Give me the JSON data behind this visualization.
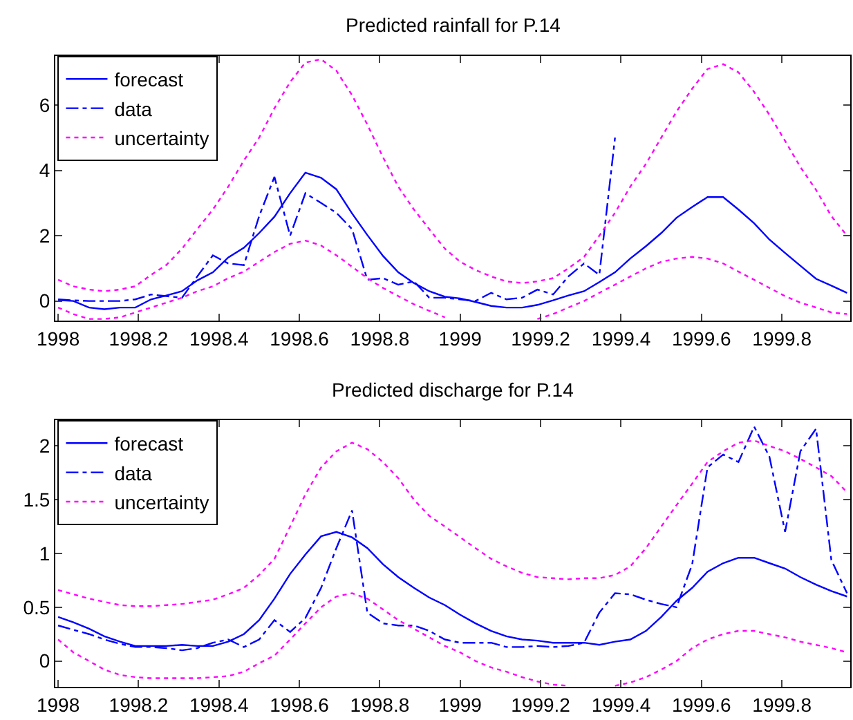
{
  "chart_data": [
    {
      "type": "line",
      "title": "Predicted rainfall for P.14",
      "legend": "top left",
      "x": [
        1998,
        1998.038,
        1998.077,
        1998.115,
        1998.154,
        1998.192,
        1998.231,
        1998.269,
        1998.308,
        1998.346,
        1998.385,
        1998.423,
        1998.462,
        1998.5,
        1998.538,
        1998.577,
        1998.615,
        1998.654,
        1998.692,
        1998.731,
        1998.769,
        1998.808,
        1998.846,
        1998.885,
        1998.923,
        1998.962,
        1999,
        1999.038,
        1999.077,
        1999.115,
        1999.154,
        1999.192,
        1999.231,
        1999.269,
        1999.308,
        1999.346,
        1999.385,
        1999.423,
        1999.462,
        1999.5,
        1999.538,
        1999.577,
        1999.615,
        1999.654,
        1999.692,
        1999.731,
        1999.769,
        1999.808,
        1999.846,
        1999.885,
        1999.923,
        1999.962
      ],
      "xlim": [
        1997.993,
        1999.97
      ],
      "xticks": [
        1998,
        1998.2,
        1998.4,
        1998.6,
        1998.8,
        1999,
        1999.2,
        1999.4,
        1999.6,
        1999.8
      ],
      "ylim": [
        -0.6,
        7.5
      ],
      "yticks": [
        0,
        2,
        4,
        6
      ],
      "series": [
        {
          "name": "forecast",
          "color": "#0000ff",
          "line_style": "solid",
          "values": [
            0.03,
            0,
            -0.2,
            -0.25,
            -0.2,
            -0.2,
            0.05,
            0.17,
            0.3,
            0.63,
            0.88,
            1.33,
            1.63,
            2.08,
            2.58,
            3.3,
            3.93,
            3.77,
            3.42,
            2.68,
            2.02,
            1.38,
            0.88,
            0.55,
            0.3,
            0.13,
            0.08,
            -0.03,
            -0.15,
            -0.2,
            -0.2,
            -0.12,
            0.02,
            0.17,
            0.3,
            0.58,
            0.88,
            1.3,
            1.68,
            2.08,
            2.55,
            2.88,
            3.18,
            3.18,
            2.8,
            2.38,
            1.88,
            1.47,
            1.08,
            0.68,
            0.47,
            0.25
          ]
        },
        {
          "name": "data",
          "color": "#0000ff",
          "line_style": "dashed",
          "values": [
            0.05,
            0.02,
            0,
            0,
            0,
            0.05,
            0.2,
            0.15,
            0.1,
            0.75,
            1.4,
            1.15,
            1.1,
            2.6,
            3.8,
            2.0,
            3.3,
            3.0,
            2.7,
            2.2,
            0.65,
            0.7,
            0.5,
            0.6,
            0.1,
            0.1,
            0.05,
            0,
            0.25,
            0.05,
            0.1,
            0.35,
            0.2,
            0.75,
            1.15,
            0.8,
            5.0,
            null,
            null,
            null,
            null,
            null,
            null,
            null,
            null,
            null,
            null,
            null,
            null,
            null,
            null,
            null
          ]
        },
        {
          "name": "uncertainty",
          "color": "#ff00ff",
          "line_style": "dotted",
          "values": [
            0.65,
            0.45,
            0.35,
            0.3,
            0.35,
            0.45,
            0.8,
            1.1,
            1.6,
            2.2,
            2.8,
            3.5,
            4.3,
            5.0,
            5.9,
            6.7,
            7.3,
            7.4,
            7.05,
            6.3,
            5.4,
            4.4,
            3.5,
            2.8,
            2.2,
            1.6,
            1.2,
            0.95,
            0.75,
            0.6,
            0.55,
            0.6,
            0.7,
            1.0,
            1.35,
            2.0,
            2.7,
            3.5,
            4.2,
            5.0,
            5.8,
            6.5,
            7.1,
            7.25,
            7.0,
            6.4,
            5.7,
            4.9,
            4.1,
            3.4,
            2.6,
            2.0
          ]
        },
        {
          "color": "#ff00ff",
          "line_style": "dotted",
          "values": [
            -0.2,
            -0.4,
            -0.55,
            -0.55,
            -0.5,
            -0.35,
            -0.2,
            -0.05,
            0.1,
            0.3,
            0.45,
            0.7,
            0.9,
            1.2,
            1.5,
            1.75,
            1.85,
            1.7,
            1.4,
            1.05,
            0.7,
            0.4,
            0.15,
            -0.1,
            -0.3,
            -0.5,
            null,
            null,
            null,
            null,
            null,
            -0.55,
            -0.4,
            -0.2,
            0,
            0.25,
            0.5,
            0.75,
            1.0,
            1.2,
            1.3,
            1.35,
            1.3,
            1.15,
            0.9,
            0.65,
            0.4,
            0.15,
            -0.05,
            -0.2,
            -0.35,
            -0.4
          ]
        }
      ]
    },
    {
      "type": "line",
      "title": "Predicted discharge for P.14",
      "legend": "top left",
      "x": [
        1998,
        1998.038,
        1998.077,
        1998.115,
        1998.154,
        1998.192,
        1998.231,
        1998.269,
        1998.308,
        1998.346,
        1998.385,
        1998.423,
        1998.462,
        1998.5,
        1998.538,
        1998.577,
        1998.615,
        1998.654,
        1998.692,
        1998.731,
        1998.769,
        1998.808,
        1998.846,
        1998.885,
        1998.923,
        1998.962,
        1999,
        1999.038,
        1999.077,
        1999.115,
        1999.154,
        1999.192,
        1999.231,
        1999.269,
        1999.308,
        1999.346,
        1999.385,
        1999.423,
        1999.462,
        1999.5,
        1999.538,
        1999.577,
        1999.615,
        1999.654,
        1999.692,
        1999.731,
        1999.769,
        1999.808,
        1999.846,
        1999.885,
        1999.923,
        1999.962
      ],
      "xlim": [
        1997.993,
        1999.97
      ],
      "xticks": [
        1998,
        1998.2,
        1998.4,
        1998.6,
        1998.8,
        1999,
        1999.2,
        1999.4,
        1999.6,
        1999.8
      ],
      "ylim": [
        -0.24,
        2.24
      ],
      "yticks": [
        0,
        0.5,
        1,
        1.5,
        2
      ],
      "series": [
        {
          "name": "forecast",
          "color": "#0000ff",
          "line_style": "solid",
          "values": [
            0.41,
            0.36,
            0.3,
            0.23,
            0.18,
            0.14,
            0.14,
            0.14,
            0.15,
            0.14,
            0.14,
            0.18,
            0.25,
            0.38,
            0.58,
            0.81,
            0.99,
            1.16,
            1.2,
            1.15,
            1.05,
            0.9,
            0.78,
            0.68,
            0.59,
            0.52,
            0.43,
            0.35,
            0.28,
            0.23,
            0.2,
            0.19,
            0.17,
            0.17,
            0.17,
            0.15,
            0.18,
            0.2,
            0.28,
            0.41,
            0.56,
            0.68,
            0.83,
            0.91,
            0.96,
            0.96,
            0.91,
            0.86,
            0.78,
            0.71,
            0.65,
            0.6
          ]
        },
        {
          "name": "data",
          "color": "#0000ff",
          "line_style": "dashed",
          "values": [
            0.33,
            0.29,
            0.25,
            0.2,
            0.16,
            0.13,
            0.13,
            0.12,
            0.1,
            0.12,
            0.17,
            0.2,
            0.13,
            0.2,
            0.38,
            0.27,
            0.4,
            0.68,
            1.05,
            1.4,
            0.45,
            0.35,
            0.33,
            0.33,
            0.28,
            0.2,
            0.17,
            0.17,
            0.17,
            0.13,
            0.13,
            0.14,
            0.13,
            0.14,
            0.17,
            0.45,
            0.63,
            0.62,
            0.57,
            0.53,
            0.5,
            0.9,
            1.8,
            1.92,
            1.85,
            2.18,
            1.9,
            1.2,
            1.95,
            2.16,
            0.94,
            0.63
          ]
        },
        {
          "name": "uncertainty",
          "color": "#ff00ff",
          "line_style": "dotted",
          "values": [
            0.66,
            0.62,
            0.58,
            0.55,
            0.52,
            0.51,
            0.51,
            0.52,
            0.53,
            0.55,
            0.57,
            0.62,
            0.68,
            0.8,
            0.95,
            1.25,
            1.55,
            1.8,
            1.95,
            2.03,
            1.97,
            1.85,
            1.7,
            1.5,
            1.35,
            1.25,
            1.15,
            1.05,
            0.95,
            0.88,
            0.82,
            0.78,
            0.77,
            0.76,
            0.77,
            0.77,
            0.8,
            0.88,
            1.05,
            1.25,
            1.45,
            1.65,
            1.85,
            1.95,
            2.03,
            2.05,
            2.0,
            1.95,
            1.88,
            1.8,
            1.72,
            1.57
          ]
        },
        {
          "color": "#ff00ff",
          "line_style": "dotted",
          "values": [
            0.2,
            0.08,
            0,
            -0.08,
            -0.13,
            -0.15,
            -0.16,
            -0.16,
            -0.16,
            -0.16,
            -0.15,
            -0.14,
            -0.1,
            -0.02,
            0.05,
            0.2,
            0.35,
            0.5,
            0.6,
            0.63,
            0.58,
            0.48,
            0.38,
            0.3,
            0.22,
            0.14,
            0.08,
            0,
            -0.06,
            -0.1,
            -0.15,
            -0.19,
            -0.22,
            -0.23,
            null,
            null,
            -0.23,
            -0.2,
            -0.15,
            -0.08,
            0,
            0.12,
            0.2,
            0.25,
            0.28,
            0.28,
            0.25,
            0.22,
            0.18,
            0.15,
            0.12,
            0.08
          ]
        }
      ]
    }
  ]
}
